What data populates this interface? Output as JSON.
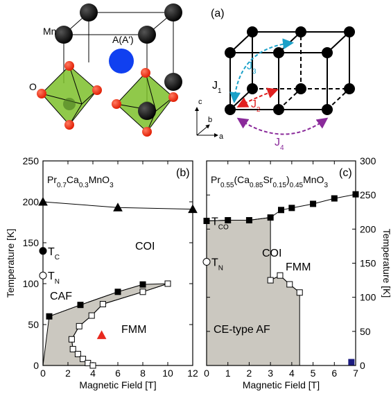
{
  "diagram": {
    "panel_label": "(a)",
    "mn": "Mn",
    "a_site": "A(A')",
    "o": "O",
    "couplings": [
      [
        "J",
        "1"
      ],
      [
        "J",
        "2"
      ],
      [
        "J",
        "3"
      ],
      [
        "J",
        "4"
      ]
    ],
    "axes": [
      "c",
      "b",
      "a"
    ]
  },
  "chart_data": [
    {
      "type": "line",
      "panel_label": "(b)",
      "title": [
        "Pr",
        "0.7",
        "Ca",
        "0.3",
        "MnO",
        "3"
      ],
      "xlabel": "Magnetic Field [T]",
      "ylabel": "Temperature [K]",
      "xlim": [
        0,
        12
      ],
      "xticks": [
        0,
        2,
        4,
        6,
        8,
        10,
        12
      ],
      "ylim": [
        0,
        250
      ],
      "yticks": [
        0,
        50,
        100,
        150,
        200,
        250
      ],
      "y_axis_side": "left",
      "region_color": "#cbc8c0",
      "series": [
        {
          "marker": "triangle",
          "color": "#000000",
          "x": [
            0,
            6,
            12
          ],
          "values": [
            200,
            193,
            191
          ]
        },
        {
          "marker": "square",
          "color": "#000000",
          "x": [
            0.5,
            3,
            6,
            8
          ],
          "values": [
            60,
            74,
            90,
            99
          ]
        },
        {
          "marker": "open-square",
          "color": "#000000",
          "x": [
            10,
            8,
            4.8,
            3.9,
            2.9,
            2.3,
            2.4,
            2.8,
            3.2,
            3.6,
            4
          ],
          "values": [
            100,
            90,
            75,
            61,
            48,
            32,
            20,
            14,
            8,
            3,
            0
          ]
        },
        {
          "marker": "triangle",
          "color": "#e8281e",
          "x": [
            4.7
          ],
          "values": [
            37
          ]
        }
      ],
      "points": [
        {
          "label": [
            "T",
            "C"
          ],
          "x": 0,
          "y": 140,
          "marker": "filled-circle"
        },
        {
          "label": [
            "T",
            "N"
          ],
          "x": 0,
          "y": 110,
          "marker": "open-circle"
        }
      ],
      "annotations": [
        "COI",
        "CAF",
        "FMM"
      ]
    },
    {
      "type": "line",
      "panel_label": "(c)",
      "title": [
        "Pr",
        "0.55",
        "(Ca",
        "0.85",
        "Sr",
        "0.15",
        ")",
        "0.45",
        "MnO",
        "3"
      ],
      "xlabel": "Magnetic Field [T]",
      "ylabel": "Temperature [K]",
      "xlim": [
        0,
        7
      ],
      "xticks": [
        0,
        1,
        2,
        3,
        4,
        5,
        6,
        7
      ],
      "ylim": [
        0,
        300
      ],
      "yticks": [
        0,
        50,
        100,
        150,
        200,
        250,
        300
      ],
      "y_axis_side": "right",
      "region_color": "#cbc8c0",
      "series": [
        {
          "marker": "square",
          "color": "#000000",
          "x": [
            0,
            1,
            2,
            3,
            3.5,
            4,
            5,
            6,
            7
          ],
          "values": [
            212,
            213,
            213,
            217,
            228,
            231,
            237,
            245,
            251
          ]
        },
        {
          "marker": "open-square",
          "color": "#000000",
          "x": [
            3,
            3.45,
            3.9,
            4.37
          ],
          "values": [
            125,
            132,
            119,
            107
          ]
        },
        {
          "marker": "square",
          "color": "#1c1c80",
          "x": [
            6.8
          ],
          "values": [
            5
          ]
        }
      ],
      "points": [
        {
          "label": [
            "T",
            "CO"
          ],
          "x": 0,
          "y": 212
        },
        {
          "label": [
            "T",
            "N"
          ],
          "x": 0,
          "y": 152,
          "marker": "open-circle"
        }
      ],
      "annotations": [
        "COI",
        "FMM",
        "CE-type AF"
      ]
    }
  ]
}
